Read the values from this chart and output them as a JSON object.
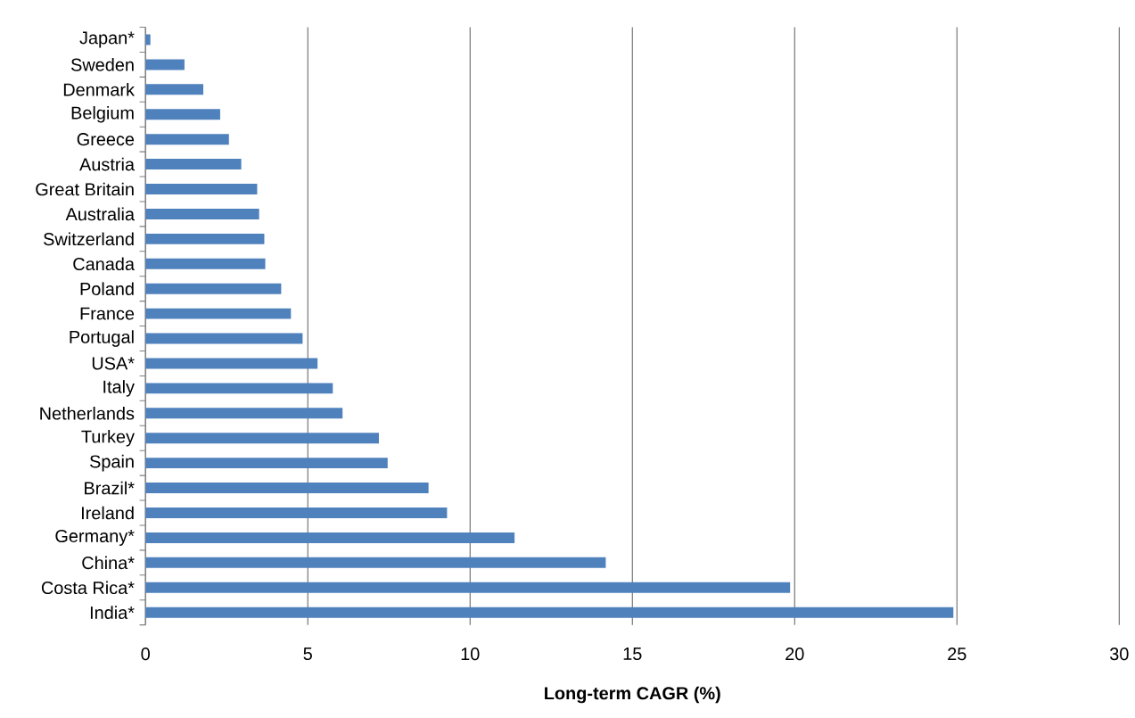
{
  "chart_data": {
    "type": "bar",
    "orientation": "horizontal",
    "xlabel": "Long-term CAGR (%)",
    "categories": [
      "Japan*",
      "Sweden",
      "Denmark",
      "Belgium",
      "Greece",
      "Austria",
      "Great Britain",
      "Australia",
      "Switzerland",
      "Canada",
      "Poland",
      "France",
      "Portugal",
      "USA*",
      "Italy",
      "Netherlands",
      "Turkey",
      "Spain",
      "Brazil*",
      "Ireland",
      "Germany*",
      "China*",
      "Costa Rica*",
      "India*"
    ],
    "values": [
      0.15,
      1.2,
      1.78,
      2.3,
      2.57,
      2.95,
      3.44,
      3.5,
      3.66,
      3.69,
      4.18,
      4.48,
      4.84,
      5.3,
      5.77,
      6.07,
      7.19,
      7.46,
      8.72,
      9.29,
      11.37,
      14.18,
      19.86,
      24.89
    ],
    "color": "#4f81bd",
    "xlim": [
      0,
      30
    ],
    "xticks": [
      0,
      5,
      10,
      15,
      20,
      25,
      30
    ],
    "grid": "x"
  }
}
